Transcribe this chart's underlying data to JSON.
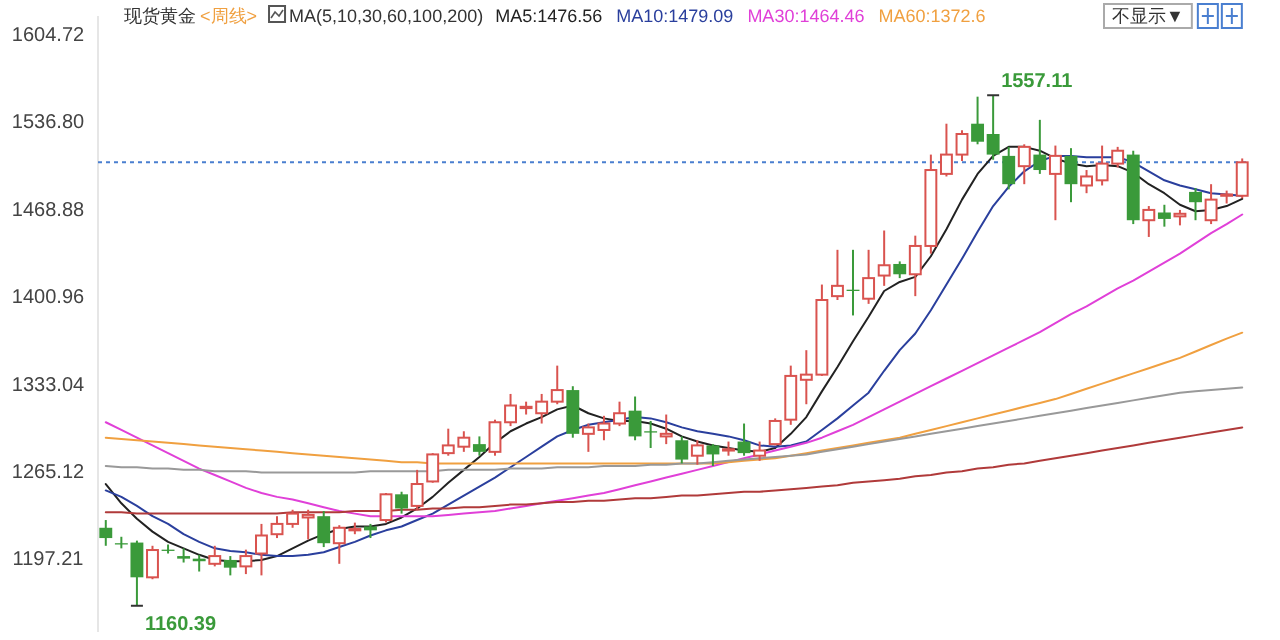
{
  "chart_data": {
    "type": "candlestick",
    "title": "现货黄金",
    "subtitle": "<周线>",
    "legend_title": "MA(5,10,30,60,100,200)",
    "legend": "top",
    "grid": false,
    "categories": [
      null,
      null,
      null,
      null,
      null,
      null,
      null,
      null,
      null,
      null,
      null,
      null,
      null,
      null,
      null,
      null,
      null,
      null,
      null,
      null,
      null,
      null,
      null,
      null,
      null,
      null,
      null,
      null,
      null,
      null,
      null,
      null,
      null,
      null,
      null,
      null,
      null,
      null,
      null,
      null,
      null,
      null,
      null,
      null,
      null,
      null,
      null,
      null,
      null,
      null,
      null,
      null,
      null,
      null,
      null,
      null,
      null,
      null,
      null,
      null,
      null,
      null,
      null,
      null,
      null,
      null,
      null,
      null,
      null,
      null,
      null,
      null,
      null,
      null
    ],
    "ylim": [
      1140,
      1618.7
    ],
    "yticks": [
      1604.72,
      {
        "value": 1536.8,
        "label": "1536.80"
      },
      1468.88,
      1400.96,
      1333.04,
      1265.12,
      1197.21
    ],
    "ref_lines": [
      {
        "axis": "y",
        "value": 1505,
        "label": null,
        "color": "#4a7fd0",
        "line_style": "dotted"
      }
    ],
    "annotations": [
      "1557.11",
      "1160.39",
      "不显示▼"
    ],
    "series": [
      {
        "ohlc": [
          [
            1221,
            1227,
            1207,
            1213
          ],
          [
            1209,
            1214,
            1205,
            1208
          ],
          [
            1209.5,
            1211,
            1160.39,
            1182.5
          ],
          [
            1182.5,
            1207,
            1181,
            1203.7
          ],
          [
            1204,
            1208,
            1201,
            1203
          ],
          [
            1199,
            1205,
            1194,
            1197
          ],
          [
            1197,
            1200,
            1187,
            1195
          ],
          [
            1193,
            1207,
            1191,
            1199
          ],
          [
            1196,
            1199,
            1184,
            1190
          ],
          [
            1191,
            1204,
            1185,
            1199
          ],
          [
            1201,
            1224,
            1184,
            1215
          ],
          [
            1216,
            1230,
            1213,
            1224
          ],
          [
            1224,
            1235,
            1221,
            1232
          ],
          [
            1229,
            1235,
            1212,
            1231
          ],
          [
            1230,
            1234,
            1206,
            1209
          ],
          [
            1209,
            1223,
            1193,
            1221
          ],
          [
            1219,
            1225,
            1216,
            1220
          ],
          [
            1222,
            1224,
            1213,
            1219
          ],
          [
            1227,
            1248,
            1225,
            1247
          ],
          [
            1247,
            1249,
            1232,
            1236
          ],
          [
            1238,
            1266,
            1235,
            1255
          ],
          [
            1257,
            1279,
            1256,
            1278
          ],
          [
            1279,
            1298,
            1277,
            1285
          ],
          [
            1284,
            1296,
            1280,
            1291
          ],
          [
            1286,
            1292,
            1277,
            1280
          ],
          [
            1280,
            1305,
            1277,
            1303
          ],
          [
            1303,
            1325,
            1300,
            1316
          ],
          [
            1314,
            1319,
            1309,
            1315
          ],
          [
            1310,
            1325,
            1302,
            1319
          ],
          [
            1319,
            1347,
            1317,
            1328
          ],
          [
            1328,
            1331,
            1291,
            1294
          ],
          [
            1294,
            1302,
            1280,
            1299
          ],
          [
            1297,
            1308,
            1289,
            1302
          ],
          [
            1302,
            1319,
            1300,
            1310
          ],
          [
            1312,
            1323,
            1289,
            1292
          ],
          [
            1296,
            1304,
            1283,
            1295
          ],
          [
            1292,
            1309,
            1286,
            1294
          ],
          [
            1289,
            1292,
            1271,
            1274
          ],
          [
            1277,
            1289,
            1270,
            1285
          ],
          [
            1285,
            1286,
            1269,
            1278
          ],
          [
            1281,
            1288,
            1277,
            1282
          ],
          [
            1288,
            1302,
            1277,
            1279
          ],
          [
            1277,
            1288,
            1273,
            1281
          ],
          [
            1286,
            1306,
            1285,
            1304
          ],
          [
            1305,
            1347,
            1301,
            1339
          ],
          [
            1336,
            1359,
            1317,
            1340
          ],
          [
            1340,
            1410,
            1339,
            1398
          ],
          [
            1401,
            1437,
            1398,
            1409
          ],
          [
            1406,
            1437,
            1386,
            1405
          ],
          [
            1399,
            1437,
            1395,
            1415
          ],
          [
            1417,
            1452,
            1409,
            1425
          ],
          [
            1426,
            1428,
            1415,
            1418
          ],
          [
            1418,
            1448,
            1401,
            1440
          ],
          [
            1440,
            1511,
            1434,
            1499
          ],
          [
            1496,
            1535,
            1494,
            1511
          ],
          [
            1511,
            1530,
            1506,
            1527
          ],
          [
            1535,
            1556,
            1519,
            1521
          ],
          [
            1527,
            1557.11,
            1507,
            1511
          ],
          [
            1510,
            1517,
            1484,
            1488
          ],
          [
            1502,
            1519,
            1488,
            1517
          ],
          [
            1511,
            1538,
            1496,
            1499
          ],
          [
            1496,
            1518,
            1460,
            1510
          ],
          [
            1510,
            1516,
            1474,
            1488
          ],
          [
            1487,
            1499,
            1481,
            1494
          ],
          [
            1491,
            1518,
            1487,
            1504
          ],
          [
            1504,
            1517,
            1501,
            1514
          ],
          [
            1511,
            1514,
            1457,
            1460
          ],
          [
            1460,
            1471,
            1447,
            1468
          ],
          [
            1466,
            1472,
            1455,
            1461
          ],
          [
            1463,
            1468,
            1456,
            1465
          ],
          [
            1482,
            1485,
            1460,
            1474
          ],
          [
            1460,
            1488,
            1457,
            1476
          ],
          [
            1479,
            1483,
            1473,
            1480
          ],
          [
            1479,
            1508,
            1477,
            1505
          ]
        ],
        "colors": [
          "#3a9a3a",
          "#3a9a3a",
          "#3a9a3a",
          "#d9534f",
          "#3a9a3a",
          "#3a9a3a",
          "#3a9a3a",
          "#d9534f",
          "#3a9a3a",
          "#d9534f",
          "#d9534f",
          "#d9534f",
          "#d9534f",
          "#d9534f",
          "#3a9a3a",
          "#d9534f",
          "#d9534f",
          "#3a9a3a",
          "#d9534f",
          "#3a9a3a",
          "#d9534f",
          "#d9534f",
          "#d9534f",
          "#d9534f",
          "#3a9a3a",
          "#d9534f",
          "#d9534f",
          "#d9534f",
          "#d9534f",
          "#d9534f",
          "#3a9a3a",
          "#d9534f",
          "#d9534f",
          "#d9534f",
          "#3a9a3a",
          "#3a9a3a",
          "#d9534f",
          "#3a9a3a",
          "#d9534f",
          "#3a9a3a",
          "#d9534f",
          "#3a9a3a",
          "#d9534f",
          "#d9534f",
          "#d9534f",
          "#d9534f",
          "#d9534f",
          "#d9534f",
          "#3a9a3a",
          "#d9534f",
          "#d9534f",
          "#3a9a3a",
          "#d9534f",
          "#d9534f",
          "#d9534f",
          "#d9534f",
          "#3a9a3a",
          "#3a9a3a",
          "#3a9a3a",
          "#d9534f",
          "#3a9a3a",
          "#d9534f",
          "#3a9a3a",
          "#d9534f",
          "#d9534f",
          "#d9534f",
          "#3a9a3a",
          "#d9534f",
          "#3a9a3a",
          "#d9534f",
          "#3a9a3a",
          "#d9534f",
          "#d9534f",
          "#d9534f"
        ]
      },
      {
        "type": "line",
        "name": "MA5:1476.56",
        "color": "#222222",
        "values": [
          1255,
          1240,
          1228,
          1218,
          1210,
          1205,
          1200,
          1196,
          1195,
          1195,
          1196,
          1199,
          1205,
          1211,
          1216,
          1220,
          1222,
          1222,
          1224,
          1229,
          1236,
          1245,
          1256,
          1266,
          1276,
          1287,
          1296,
          1302,
          1307,
          1313,
          1316,
          1310,
          1306,
          1304,
          1304,
          1302,
          1298,
          1292,
          1288,
          1285,
          1283,
          1281,
          1280,
          1283,
          1294,
          1307,
          1327,
          1346,
          1366,
          1385,
          1405,
          1412,
          1416,
          1432,
          1453,
          1476,
          1496,
          1510,
          1517,
          1517,
          1514,
          1508,
          1504,
          1502,
          1503,
          1502,
          1497,
          1488,
          1481,
          1472,
          1467,
          1468,
          1471,
          1476.56
        ]
      },
      {
        "type": "line",
        "name": "MA10:1479.09",
        "color": "#2a3f9d",
        "values": [
          1250,
          1245,
          1238,
          1230,
          1224,
          1216,
          1210,
          1205,
          1203,
          1202,
          1200,
          1199,
          1199,
          1200,
          1202,
          1206,
          1210,
          1215,
          1219,
          1222,
          1227,
          1232,
          1239,
          1246,
          1253,
          1260,
          1268,
          1276,
          1284,
          1292,
          1297,
          1301,
          1303,
          1305,
          1307,
          1306,
          1303,
          1299,
          1296,
          1294,
          1292,
          1289,
          1285,
          1284,
          1285,
          1288,
          1297,
          1306,
          1316,
          1326,
          1343,
          1359,
          1372,
          1390,
          1410,
          1430,
          1451,
          1471,
          1486,
          1498,
          1506,
          1510,
          1510,
          1509,
          1509,
          1509,
          1505,
          1498,
          1491,
          1487,
          1484,
          1481,
          1480,
          1479.09
        ]
      },
      {
        "type": "line",
        "name": "MA30:1464.46",
        "color": "#e040d8",
        "values": [
          1303,
          1297,
          1291,
          1285,
          1279,
          1273,
          1267,
          1262,
          1257,
          1252,
          1248,
          1245,
          1243,
          1240,
          1237,
          1234,
          1232,
          1230,
          1230,
          1230,
          1230,
          1230,
          1231,
          1232,
          1233,
          1234,
          1236,
          1238,
          1240,
          1242,
          1244,
          1246,
          1248,
          1251,
          1254,
          1257,
          1260,
          1263,
          1266,
          1269,
          1272,
          1275,
          1278,
          1281,
          1284,
          1287,
          1291,
          1296,
          1301,
          1307,
          1313,
          1319,
          1325,
          1331,
          1337,
          1343,
          1349,
          1355,
          1361,
          1367,
          1373,
          1380,
          1387,
          1393,
          1400,
          1407,
          1413,
          1420,
          1427,
          1434,
          1442,
          1450,
          1457,
          1464.46
        ]
      },
      {
        "type": "line",
        "name": "MA60:1372.6",
        "color": "#f0a040",
        "values": [
          1291,
          1290,
          1289,
          1288,
          1287,
          1286,
          1285,
          1284,
          1283,
          1282,
          1281,
          1280,
          1279,
          1278,
          1277,
          1276,
          1275,
          1274,
          1273,
          1272,
          1272,
          1271,
          1271,
          1271,
          1271,
          1271,
          1271,
          1271,
          1271,
          1271,
          1271,
          1271,
          1271,
          1271,
          1271,
          1271,
          1271,
          1271,
          1271,
          1271,
          1272,
          1273,
          1274,
          1275,
          1277,
          1279,
          1281,
          1283,
          1285,
          1287,
          1289,
          1291,
          1294,
          1297,
          1300,
          1303,
          1306,
          1309,
          1312,
          1315,
          1318,
          1321,
          1325,
          1329,
          1333,
          1337,
          1341,
          1345,
          1349,
          1353,
          1358,
          1363,
          1368,
          1372.6
        ]
      },
      {
        "type": "line",
        "color": "#999999",
        "values": [
          1269,
          1268,
          1268,
          1267,
          1267,
          1266,
          1266,
          1265,
          1265,
          1265,
          1264,
          1264,
          1264,
          1264,
          1264,
          1264,
          1264,
          1265,
          1265,
          1265,
          1265,
          1265,
          1266,
          1266,
          1266,
          1266,
          1267,
          1267,
          1267,
          1268,
          1268,
          1268,
          1269,
          1269,
          1269,
          1270,
          1270,
          1271,
          1271,
          1272,
          1273,
          1274,
          1275,
          1276,
          1277,
          1278,
          1280,
          1282,
          1284,
          1286,
          1288,
          1290,
          1292,
          1294,
          1296,
          1298,
          1300,
          1302,
          1304,
          1306,
          1308,
          1310,
          1312,
          1314,
          1316,
          1318,
          1320,
          1322,
          1324,
          1326,
          1327,
          1328,
          1329,
          1330
        ]
      },
      {
        "type": "line",
        "color": "#b03a3a",
        "values": [
          1233,
          1233,
          1232,
          1232,
          1232,
          1232,
          1232,
          1232,
          1232,
          1232,
          1232,
          1232,
          1233,
          1233,
          1233,
          1233,
          1234,
          1234,
          1234,
          1235,
          1235,
          1236,
          1236,
          1237,
          1237,
          1238,
          1239,
          1239,
          1240,
          1241,
          1241,
          1242,
          1242,
          1243,
          1244,
          1244,
          1245,
          1246,
          1246,
          1247,
          1248,
          1249,
          1249,
          1250,
          1251,
          1252,
          1253,
          1254,
          1256,
          1257,
          1258,
          1259,
          1261,
          1262,
          1264,
          1265,
          1267,
          1268,
          1270,
          1271,
          1273,
          1275,
          1277,
          1279,
          1281,
          1283,
          1285,
          1287,
          1289,
          1291,
          1293,
          1295,
          1297,
          1299
        ]
      }
    ]
  }
}
